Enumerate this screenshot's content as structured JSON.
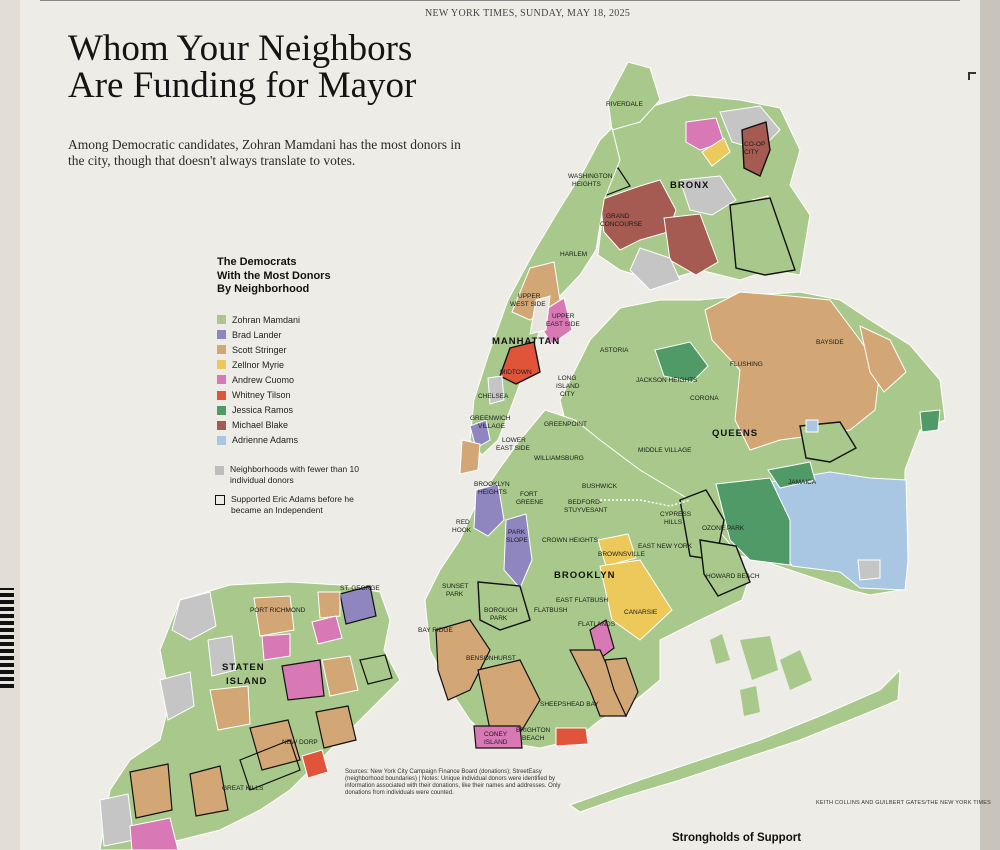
{
  "running_head": "NEW YORK TIMES, SUNDAY, MAY 18, 2025",
  "title_line1": "Whom Your Neighbors",
  "title_line2": "Are Funding for Mayor",
  "dek": "Among Democratic candidates, Zohran Mamdani has the most donors in the city, though that doesn't always translate to votes.",
  "legend": {
    "title_line1": "The Democrats",
    "title_line2": "With the Most Donors",
    "title_line3": "By Neighborhood",
    "items": [
      {
        "label": "Zohran Mamdani",
        "color": "#a8c98b"
      },
      {
        "label": "Brad Lander",
        "color": "#8f86c0"
      },
      {
        "label": "Scott Stringer",
        "color": "#d2a775"
      },
      {
        "label": "Zellnor Myrie",
        "color": "#ecc95a"
      },
      {
        "label": "Andrew Cuomo",
        "color": "#d878b5"
      },
      {
        "label": "Whitney Tilson",
        "color": "#e0553a"
      },
      {
        "label": "Jessica Ramos",
        "color": "#4f9a67"
      },
      {
        "label": "Michael Blake",
        "color": "#a55a52"
      },
      {
        "label": "Adrienne Adams",
        "color": "#a9c7e2"
      }
    ],
    "few_donors_note": "Neighborhoods with fewer than 10 individual donors",
    "few_donors_color": "#bdbdbd",
    "adams_note": "Supported Eric Adams before he became an Independent"
  },
  "labels": {
    "riverdale": "RIVERDALE",
    "coop_city_1": "CO-OP",
    "coop_city_2": "CITY",
    "bronx": "BRONX",
    "washington_heights_1": "WASHINGTON",
    "washington_heights_2": "HEIGHTS",
    "grand_concourse_1": "GRAND",
    "grand_concourse_2": "CONCOURSE",
    "harlem": "HARLEM",
    "upper_west_side_1": "UPPER",
    "upper_west_side_2": "WEST SIDE",
    "upper_east_side_1": "UPPER",
    "upper_east_side_2": "EAST SIDE",
    "manhattan": "MANHATTAN",
    "midtown": "MIDTOWN",
    "chelsea": "CHELSEA",
    "greenwich_village_1": "GREENWICH",
    "greenwich_village_2": "VILLAGE",
    "lower_east_side_1": "LOWER",
    "lower_east_side_2": "EAST SIDE",
    "astoria": "ASTORIA",
    "long_island_city_1": "LONG",
    "long_island_city_2": "ISLAND",
    "long_island_city_3": "CITY",
    "jackson_heights": "JACKSON HEIGHTS",
    "flushing": "FLUSHING",
    "bayside": "BAYSIDE",
    "corona": "CORONA",
    "greenpoint": "GREENPOINT",
    "queens": "QUEENS",
    "middle_village": "MIDDLE VILLAGE",
    "williamsburg": "WILLIAMSBURG",
    "jamaica": "JAMAICA",
    "bushwick": "BUSHWICK",
    "brooklyn_heights_1": "BROOKLYN",
    "brooklyn_heights_2": "HEIGHTS",
    "fort_greene_1": "FORT",
    "fort_greene_2": "GREENE",
    "bedford_stuyvesant_1": "BEDFORD-",
    "bedford_stuyvesant_2": "STUYVESANT",
    "cypress_hills_1": "CYPRESS",
    "cypress_hills_2": "HILLS",
    "ozone_park": "OZONE PARK",
    "red_hook_1": "RED",
    "red_hook_2": "HOOK",
    "park_slope_1": "PARK",
    "park_slope_2": "SLOPE",
    "crown_heights": "CROWN HEIGHTS",
    "east_new_york": "EAST NEW YORK",
    "brownsville": "BROWNSVILLE",
    "brooklyn": "BROOKLYN",
    "howard_beach": "HOWARD BEACH",
    "sunset_park_1": "SUNSET",
    "sunset_park_2": "PARK",
    "east_flatbush": "EAST FLATBUSH",
    "borough_park_1": "BOROUGH",
    "borough_park_2": "PARK",
    "flatbush": "FLATBUSH",
    "canarsie": "CANARSIE",
    "bay_ridge": "BAY RIDGE",
    "flatlands": "FLATLANDS",
    "bensonhurst": "BENSONHURST",
    "sheepshead_bay": "SHEEPSHEAD BAY",
    "coney_island_1": "CONEY",
    "coney_island_2": "ISLAND",
    "brighton_beach_1": "BRIGHTON",
    "brighton_beach_2": "BEACH",
    "st_george": "ST. GEORGE",
    "port_richmond": "PORT RICHMOND",
    "staten_island_1": "STATEN",
    "staten_island_2": "ISLAND",
    "new_dorp": "NEW DORP",
    "great_kills": "GREAT KILLS"
  },
  "sources": "Sources: New York City Campaign Finance Board (donations); StreetEasy (neighborhood boundaries) | Notes: Unique individual donors were identified by information associated with their donations, like their names and addresses. Only donations from individuals were counted.",
  "credit": "KEITH COLLINS AND GUILBERT GATES/THE NEW YORK TIMES",
  "next_headline": "Strongholds of Support"
}
